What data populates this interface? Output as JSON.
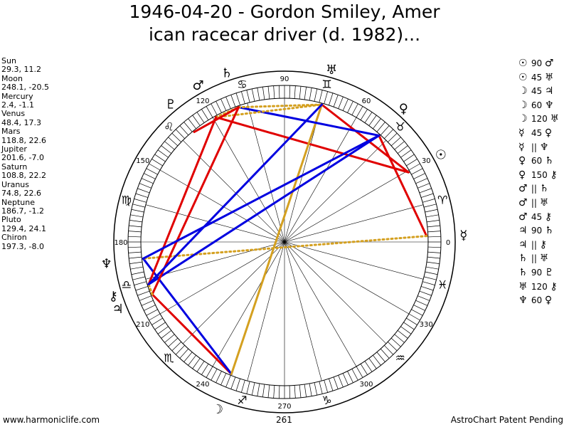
{
  "title_line1": "1946-04-20 - Gordon Smiley, Amer",
  "title_line2": "ican racecar driver (d. 1982)...",
  "footer": {
    "left": "www.harmoniclife.com",
    "center": "261",
    "right": "AstroChart Patent Pending"
  },
  "planets": [
    {
      "name": "Sun",
      "coords": "29.3, 11.2",
      "lon": 29.3,
      "glyph": "☉",
      "color": "#000000"
    },
    {
      "name": "Moon",
      "coords": "248.1, -20.5",
      "lon": 248.1,
      "glyph": "☽",
      "color": "#000000"
    },
    {
      "name": "Mercury",
      "coords": "2.4, -1.1",
      "lon": 2.4,
      "glyph": "☿",
      "color": "#000000"
    },
    {
      "name": "Venus",
      "coords": "48.4, 17.3",
      "lon": 48.4,
      "glyph": "♀",
      "color": "#000000"
    },
    {
      "name": "Mars",
      "coords": "118.8, 22.6",
      "lon": 118.8,
      "glyph": "♂",
      "color": "#000000"
    },
    {
      "name": "Jupiter",
      "coords": "201.6, -7.0",
      "lon": 201.6,
      "glyph": "♃",
      "color": "#000000"
    },
    {
      "name": "Saturn",
      "coords": "108.8, 22.2",
      "lon": 108.8,
      "glyph": "♄",
      "color": "#000000"
    },
    {
      "name": "Uranus",
      "coords": "74.8, 22.6",
      "lon": 74.8,
      "glyph": "♅",
      "color": "#000000"
    },
    {
      "name": "Neptune",
      "coords": "186.7, -1.2",
      "lon": 186.7,
      "glyph": "♆",
      "color": "#000000"
    },
    {
      "name": "Pluto",
      "coords": "129.4, 24.1",
      "lon": 129.4,
      "glyph": "♇",
      "color": "#000000"
    },
    {
      "name": "Chiron",
      "coords": "197.3, -8.0",
      "lon": 197.3,
      "glyph": "⚷",
      "color": "#000000"
    }
  ],
  "zodiac": [
    {
      "glyph": "♈",
      "lon": 15
    },
    {
      "glyph": "♉",
      "lon": 45
    },
    {
      "glyph": "♊",
      "lon": 75
    },
    {
      "glyph": "♋",
      "lon": 105
    },
    {
      "glyph": "♌",
      "lon": 135
    },
    {
      "glyph": "♍",
      "lon": 165
    },
    {
      "glyph": "♎",
      "lon": 195
    },
    {
      "glyph": "♏",
      "lon": 225
    },
    {
      "glyph": "♐",
      "lon": 255
    },
    {
      "glyph": "♑",
      "lon": 285
    },
    {
      "glyph": "♒",
      "lon": 315
    },
    {
      "glyph": "♓",
      "lon": 345
    }
  ],
  "degree_labels": [
    {
      "text": "0",
      "lon": 0
    },
    {
      "text": "30",
      "lon": 30
    },
    {
      "text": "60",
      "lon": 60
    },
    {
      "text": "90",
      "lon": 90
    },
    {
      "text": "120",
      "lon": 120
    },
    {
      "text": "150",
      "lon": 150
    },
    {
      "text": "180",
      "lon": 180
    },
    {
      "text": "210",
      "lon": 210
    },
    {
      "text": "240",
      "lon": 240
    },
    {
      "text": "270",
      "lon": 270
    },
    {
      "text": "300",
      "lon": 300
    },
    {
      "text": "330",
      "lon": 330
    }
  ],
  "aspects": [
    {
      "p1": "☉",
      "aspect": "90",
      "p2": "♂",
      "from": "Sun",
      "to": "Mars",
      "color": "#e00000",
      "style": "solid"
    },
    {
      "p1": "☉",
      "aspect": "45",
      "p2": "♅",
      "from": "Sun",
      "to": "Uranus",
      "color": "#e00000",
      "style": "solid"
    },
    {
      "p1": "☽",
      "aspect": "45",
      "p2": "♃",
      "from": "Moon",
      "to": "Jupiter",
      "color": "#e00000",
      "style": "solid"
    },
    {
      "p1": "☽",
      "aspect": "60",
      "p2": "♆",
      "from": "Moon",
      "to": "Neptune",
      "color": "#0000e0",
      "style": "solid"
    },
    {
      "p1": "☽",
      "aspect": "120",
      "p2": "♅",
      "from": "Moon",
      "to": "Uranus",
      "color": "#d4a020",
      "style": "solid"
    },
    {
      "p1": "☿",
      "aspect": "45",
      "p2": "♀",
      "from": "Mercury",
      "to": "Venus",
      "color": "#e00000",
      "style": "solid"
    },
    {
      "p1": "☿",
      "aspect": "||",
      "p2": "♆",
      "from": "Mercury",
      "to": "Neptune",
      "color": "#d4a020",
      "style": "dotted"
    },
    {
      "p1": "♀",
      "aspect": "60",
      "p2": "♄",
      "from": "Venus",
      "to": "Saturn",
      "color": "#0000e0",
      "style": "solid"
    },
    {
      "p1": "♀",
      "aspect": "150",
      "p2": "⚷",
      "from": "Venus",
      "to": "Chiron",
      "color": "#0000e0",
      "style": "solid"
    },
    {
      "p1": "♂",
      "aspect": "||",
      "p2": "♄",
      "from": "Mars",
      "to": "Saturn",
      "color": "#d4a020",
      "style": "dotted"
    },
    {
      "p1": "♂",
      "aspect": "||",
      "p2": "♅",
      "from": "Mars",
      "to": "Uranus",
      "color": "#d4a020",
      "style": "dotted"
    },
    {
      "p1": "♂",
      "aspect": "45",
      "p2": "⚷",
      "from": "Mars",
      "to": "Chiron",
      "color": "#e00000",
      "style": "solid"
    },
    {
      "p1": "♃",
      "aspect": "90",
      "p2": "♄",
      "from": "Jupiter",
      "to": "Saturn",
      "color": "#e00000",
      "style": "solid"
    },
    {
      "p1": "♃",
      "aspect": "||",
      "p2": "⚷",
      "from": "Jupiter",
      "to": "Chiron",
      "color": "#d4a020",
      "style": "dotted"
    },
    {
      "p1": "♄",
      "aspect": "||",
      "p2": "♅",
      "from": "Saturn",
      "to": "Uranus",
      "color": "#d4a020",
      "style": "dotted"
    },
    {
      "p1": "♄",
      "aspect": "90",
      "p2": "♇",
      "from": "Saturn",
      "to": "Pluto",
      "color": "#e00000",
      "style": "solid"
    },
    {
      "p1": "♅",
      "aspect": "120",
      "p2": "⚷",
      "from": "Uranus",
      "to": "Chiron",
      "color": "#0000e0",
      "style": "solid"
    },
    {
      "p1": "♆",
      "aspect": "60",
      "p2": "♀",
      "from": "Neptune",
      "to": "Venus",
      "color": "#0000e0",
      "style": "solid"
    }
  ]
}
